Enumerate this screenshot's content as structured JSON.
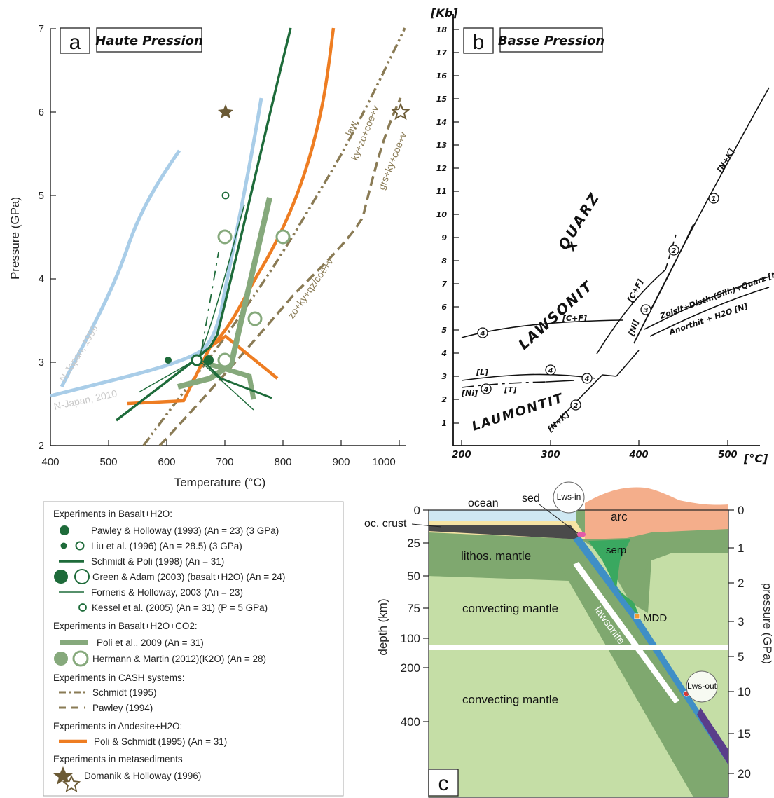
{
  "panel_a": {
    "letter": "a",
    "title": "Haute Pression",
    "xlabel": "Temperature (°C)",
    "ylabel": "Pressure (GPa)",
    "xticks": [
      "400",
      "500",
      "600",
      "700",
      "800",
      "900",
      "1000"
    ],
    "yticks": [
      "2",
      "3",
      "4",
      "5",
      "6",
      "7"
    ],
    "curve_labels": {
      "japan1999": "N-Japan, 1999",
      "japan2010": "N-Japan, 2010",
      "law": "law",
      "kyzo": "ky+zo+coe+v",
      "grs": "grs+ky+coe+v",
      "zoky": "zo+ky+qz/coe+v"
    }
  },
  "panel_b": {
    "letter": "b",
    "title": "Basse Pression",
    "yunit": "[Kb]",
    "xunit": "[°C]",
    "xticks": [
      "200",
      "300",
      "400",
      "500"
    ],
    "yticks": [
      "1",
      "2",
      "3",
      "4",
      "5",
      "6",
      "7",
      "8",
      "9",
      "10",
      "11",
      "12",
      "13",
      "14",
      "15",
      "16",
      "17",
      "18"
    ],
    "field_lawsonit": "LAWSONIT",
    "field_quarz": "QUARZ",
    "field_laumontit": "LAUMONTIT",
    "reaction_labels": [
      "[C+F]",
      "[C+F]",
      "[L]",
      "[Ni]",
      "[T]",
      "[N+K]",
      "[N+K]",
      "[Ni]",
      "Zoisit+Disth.(Sill.)+Quarz [N+K]",
      "Anorthit + H2O [N]"
    ],
    "circled": [
      "1",
      "2",
      "3",
      "4"
    ]
  },
  "legend": {
    "sections": [
      {
        "title": "Experiments in Basalt+H2O:",
        "items": [
          "Pawley & Holloway (1993) (An = 23)  (3 GPa)",
          "Liu et al. (1996) (An = 28.5) (3 GPa)",
          "Schmidt & Poli (1998) (An = 31)",
          "Green & Adam (2003) (basalt+H2O) (An = 24)",
          "Forneris & Holloway, 2003 (An = 23)",
          "Kessel  et al. (2005) (An = 31) (P = 5 GPa)"
        ]
      },
      {
        "title": "Experiments in Basalt+H2O+CO2:",
        "items": [
          "Poli et al., 2009 (An = 31)",
          "Hermann & Martin (2012)(K2O) (An = 28)"
        ]
      },
      {
        "title": "Experiments in CASH systems:",
        "items": [
          "Schmidt (1995)",
          "Pawley (1994)"
        ]
      },
      {
        "title": "Experiments in Andesite+H2O:",
        "items": [
          "Poli & Schmidt (1995) (An = 31)"
        ]
      },
      {
        "title": "Experiments in metasediments",
        "items": [
          "Domanik & Holloway (1996)"
        ]
      }
    ]
  },
  "panel_c": {
    "letter": "c",
    "left_axis_title": "depth (km)",
    "right_axis_title": "pressure (GPa)",
    "depth_ticks": [
      "0",
      "25",
      "50",
      "75",
      "100",
      "200",
      "400"
    ],
    "pressure_ticks": [
      "0",
      "1",
      "2",
      "3",
      "5",
      "10",
      "15",
      "20"
    ],
    "labels": {
      "ocean": "ocean",
      "sed": "sed",
      "lws_in": "Lws-in",
      "arc": "arc",
      "oc_crust": "oc. crust",
      "serp": "serp",
      "lithos": "lithos. mantle",
      "convecting_upper": "convecting mantle",
      "convecting_lower": "convecting mantle",
      "lawsonite": "lawsonite",
      "mdd": "MDD",
      "lws_out": "Lws-out"
    }
  },
  "colors": {
    "dark_green": "#1e6b3a",
    "light_blue": "#a9cde8",
    "orange": "#ee7d22",
    "sage": "#86a97c",
    "olive": "#8a7b55",
    "star": "#6b5a35",
    "mantle_light": "#c5dea6",
    "mantle_dark": "#7fa86f",
    "ocean": "#cfe8f2",
    "sediment": "#f6e4a4",
    "arc": "#f4ae8b",
    "serp": "#3aa860",
    "slab_blue": "#3f8fc6"
  }
}
